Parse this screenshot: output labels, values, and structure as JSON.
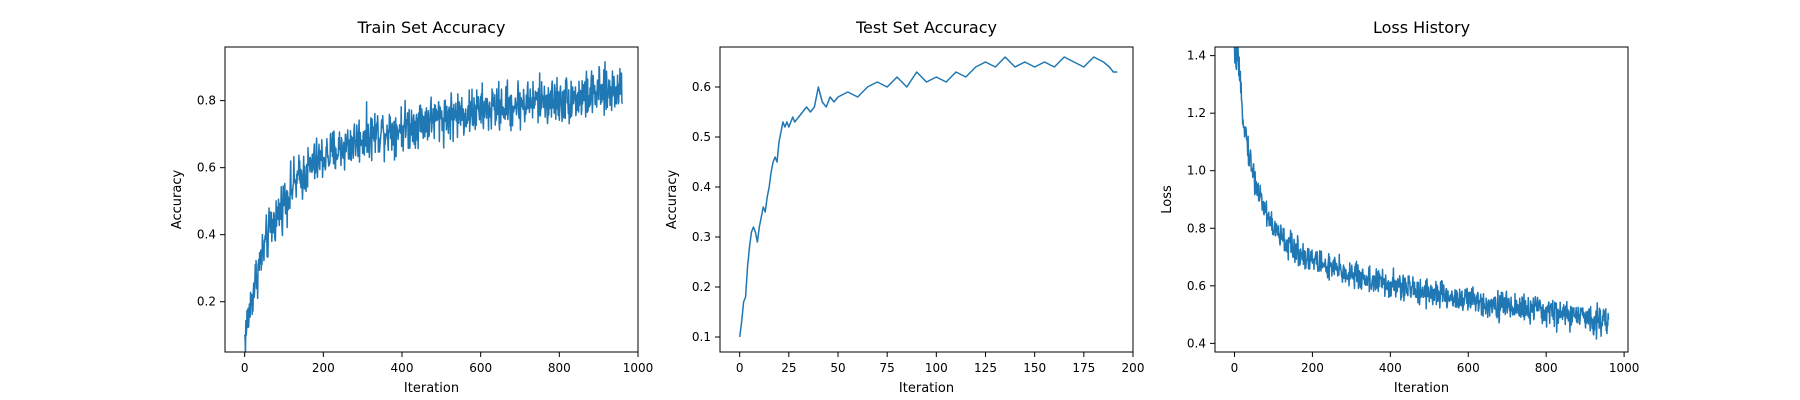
{
  "chart_data": [
    {
      "type": "line",
      "title": "Train Set Accuracy",
      "xlabel": "Iteration",
      "ylabel": "Accuracy",
      "xlim": [
        -50,
        1000
      ],
      "ylim": [
        0.05,
        0.96
      ],
      "xticks": [
        0,
        200,
        400,
        600,
        800,
        1000
      ],
      "yticks": [
        0.2,
        0.4,
        0.6,
        0.8
      ],
      "xtick_labels": [
        "0",
        "200",
        "400",
        "600",
        "800",
        "1000"
      ],
      "ytick_labels": [
        "0.2",
        "0.4",
        "0.6",
        "0.8"
      ],
      "grid": false,
      "series": [
        {
          "color": "#1f77b4",
          "x": [
            0,
            10,
            20,
            30,
            40,
            50,
            60,
            80,
            100,
            125,
            150,
            175,
            200,
            250,
            300,
            350,
            400,
            450,
            500,
            550,
            600,
            650,
            700,
            750,
            800,
            850,
            900,
            960
          ],
          "y": [
            0.09,
            0.16,
            0.22,
            0.28,
            0.32,
            0.36,
            0.4,
            0.45,
            0.5,
            0.55,
            0.58,
            0.61,
            0.63,
            0.66,
            0.69,
            0.71,
            0.72,
            0.74,
            0.75,
            0.76,
            0.77,
            0.78,
            0.79,
            0.8,
            0.8,
            0.81,
            0.82,
            0.84
          ],
          "noise": 0.05
        }
      ]
    },
    {
      "type": "line",
      "title": "Test Set Accuracy",
      "xlabel": "Iteration",
      "ylabel": "Accuracy",
      "xlim": [
        -10,
        200
      ],
      "ylim": [
        0.07,
        0.68
      ],
      "xticks": [
        0,
        25,
        50,
        75,
        100,
        125,
        150,
        175,
        200
      ],
      "yticks": [
        0.1,
        0.2,
        0.3,
        0.4,
        0.5,
        0.6
      ],
      "xtick_labels": [
        "0",
        "25",
        "50",
        "75",
        "100",
        "125",
        "150",
        "175",
        "200"
      ],
      "ytick_labels": [
        "0.1",
        "0.2",
        "0.3",
        "0.4",
        "0.5",
        "0.6"
      ],
      "grid": false,
      "series": [
        {
          "color": "#1f77b4",
          "x": [
            0,
            1,
            2,
            3,
            4,
            5,
            6,
            7,
            8,
            9,
            10,
            11,
            12,
            13,
            14,
            15,
            16,
            17,
            18,
            19,
            20,
            21,
            22,
            23,
            24,
            25,
            26,
            27,
            28,
            30,
            32,
            34,
            36,
            38,
            40,
            42,
            44,
            46,
            48,
            50,
            55,
            60,
            65,
            70,
            75,
            80,
            85,
            90,
            95,
            100,
            105,
            110,
            115,
            120,
            125,
            130,
            135,
            140,
            145,
            150,
            155,
            160,
            165,
            170,
            175,
            180,
            185,
            188,
            190,
            192
          ],
          "y": [
            0.1,
            0.13,
            0.17,
            0.18,
            0.24,
            0.28,
            0.31,
            0.32,
            0.31,
            0.29,
            0.32,
            0.34,
            0.36,
            0.35,
            0.38,
            0.4,
            0.43,
            0.45,
            0.46,
            0.45,
            0.49,
            0.51,
            0.53,
            0.52,
            0.53,
            0.52,
            0.53,
            0.54,
            0.53,
            0.54,
            0.55,
            0.56,
            0.55,
            0.56,
            0.6,
            0.57,
            0.56,
            0.58,
            0.57,
            0.58,
            0.59,
            0.58,
            0.6,
            0.61,
            0.6,
            0.62,
            0.6,
            0.63,
            0.61,
            0.62,
            0.61,
            0.63,
            0.62,
            0.64,
            0.65,
            0.64,
            0.66,
            0.64,
            0.65,
            0.64,
            0.65,
            0.64,
            0.66,
            0.65,
            0.64,
            0.66,
            0.65,
            0.64,
            0.63,
            0.63
          ]
        }
      ]
    },
    {
      "type": "line",
      "title": "Loss History",
      "xlabel": "Iteration",
      "ylabel": "Loss",
      "xlim": [
        -50,
        1010
      ],
      "ylim": [
        0.37,
        1.43
      ],
      "xticks": [
        0,
        200,
        400,
        600,
        800,
        1000
      ],
      "yticks": [
        0.4,
        0.6,
        0.8,
        1.0,
        1.2,
        1.4
      ],
      "xtick_labels": [
        "0",
        "200",
        "400",
        "600",
        "800",
        "1000"
      ],
      "ytick_labels": [
        "0.4",
        "0.6",
        "0.8",
        "1.0",
        "1.2",
        "1.4"
      ],
      "grid": false,
      "series": [
        {
          "color": "#1f77b4",
          "x": [
            0,
            5,
            10,
            15,
            20,
            30,
            40,
            50,
            60,
            80,
            100,
            125,
            150,
            175,
            200,
            250,
            300,
            350,
            400,
            450,
            500,
            550,
            600,
            650,
            700,
            750,
            800,
            850,
            900,
            960
          ],
          "y": [
            1.4,
            1.4,
            1.37,
            1.28,
            1.22,
            1.12,
            1.04,
            0.98,
            0.93,
            0.86,
            0.8,
            0.76,
            0.73,
            0.71,
            0.69,
            0.66,
            0.64,
            0.62,
            0.6,
            0.59,
            0.58,
            0.56,
            0.55,
            0.54,
            0.53,
            0.52,
            0.51,
            0.5,
            0.49,
            0.48
          ],
          "noise": 0.035
        }
      ]
    }
  ]
}
